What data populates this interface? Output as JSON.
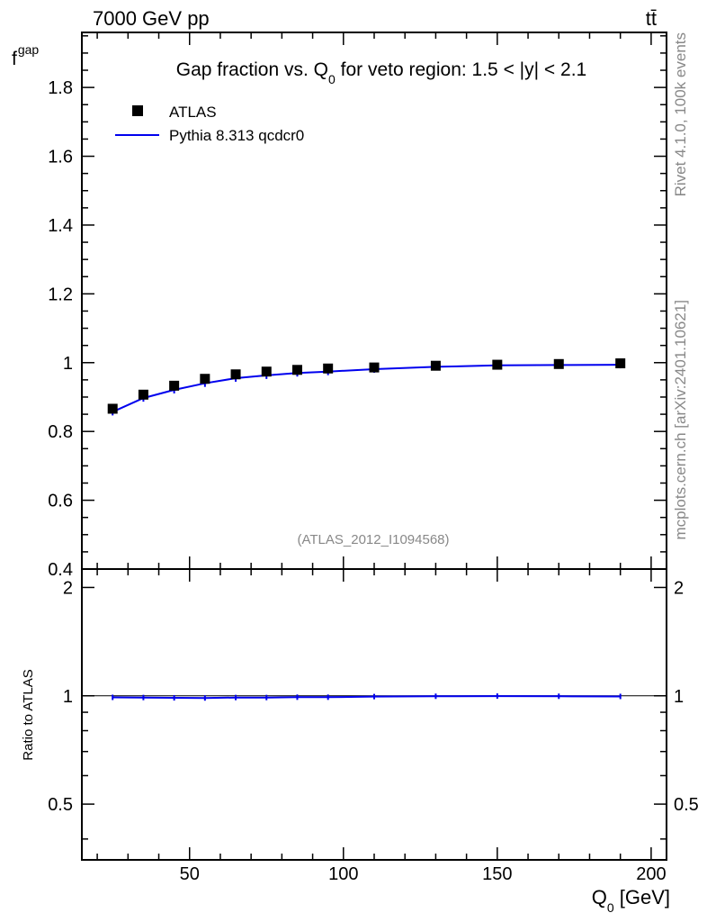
{
  "header": {
    "energy_label": "7000 GeV pp",
    "process_label": "tt̄"
  },
  "side_labels": {
    "rivet": "Rivet 4.1.0,  100k events",
    "mcplots": "mcplots.cern.ch [arXiv:2401.10621]"
  },
  "chart_data": [
    {
      "type": "scatter",
      "title_parts": {
        "pre": "Gap fraction vs. Q",
        "sub": "0",
        "post": " for veto region: 1.5 < |y| < 2.1"
      },
      "ylabel_main": "f",
      "ylabel_sub": "gap",
      "analysis_label": "(ATLAS_2012_I1094568)",
      "xlim": [
        15,
        205
      ],
      "ylim": [
        0.4,
        1.96
      ],
      "y_ticks": [
        0.4,
        0.6,
        0.8,
        1,
        1.2,
        1.4,
        1.6,
        1.8
      ],
      "y_tick_labels": [
        "0.4",
        "0.6",
        "0.8",
        "1",
        "1.2",
        "1.4",
        "1.6",
        "1.8"
      ],
      "legend_position": "top-left",
      "series": [
        {
          "name": "ATLAS",
          "kind": "points",
          "color": "#000000",
          "x": [
            25,
            35,
            45,
            55,
            65,
            75,
            85,
            95,
            110,
            130,
            150,
            170,
            190
          ],
          "y": [
            0.866,
            0.907,
            0.933,
            0.953,
            0.966,
            0.974,
            0.979,
            0.983,
            0.986,
            0.991,
            0.994,
            0.996,
            0.998
          ]
        },
        {
          "name": "Pythia 8.313 qcdcr0",
          "kind": "line",
          "color": "#0000ee",
          "x": [
            25,
            35,
            45,
            55,
            65,
            75,
            85,
            95,
            110,
            130,
            150,
            170,
            190
          ],
          "y": [
            0.857,
            0.897,
            0.921,
            0.94,
            0.955,
            0.963,
            0.97,
            0.974,
            0.981,
            0.988,
            0.992,
            0.993,
            0.994
          ]
        }
      ]
    },
    {
      "type": "line",
      "ylabel": "Ratio to ATLAS",
      "xlabel_main": "Q",
      "xlabel_sub": "0",
      "xlabel_unit": " [GeV]",
      "xlim": [
        15,
        205
      ],
      "ylim": [
        0.35,
        2.25
      ],
      "x_ticks": [
        50,
        100,
        150,
        200
      ],
      "x_tick_labels": [
        "50",
        "100",
        "150",
        "200"
      ],
      "y_ticks": [
        0.5,
        1,
        2
      ],
      "y_tick_labels": [
        "0.5",
        "1",
        "2"
      ],
      "series": [
        {
          "name": "Pythia 8.313 qcdcr0",
          "color": "#0000ee",
          "x": [
            25,
            35,
            45,
            55,
            65,
            75,
            85,
            95,
            110,
            130,
            150,
            170,
            190
          ],
          "y": [
            0.99,
            0.989,
            0.987,
            0.986,
            0.989,
            0.989,
            0.991,
            0.991,
            0.995,
            0.997,
            0.998,
            0.997,
            0.996
          ]
        }
      ]
    }
  ]
}
